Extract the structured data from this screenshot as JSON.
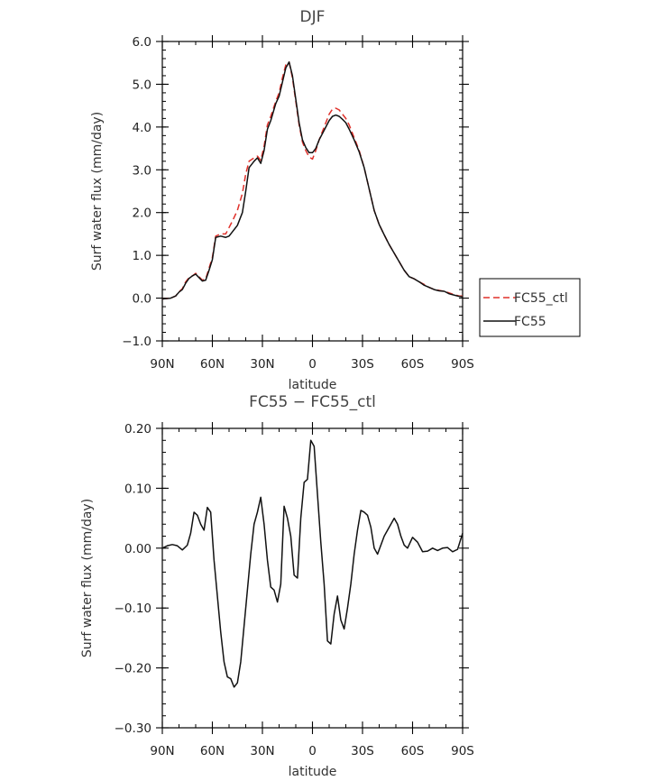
{
  "chart_data": [
    {
      "type": "line",
      "title": "DJF",
      "xlabel": "latitude",
      "ylabel": "Surf water flux (mm/day)",
      "xlim": [
        -90,
        90
      ],
      "ylim": [
        -1.0,
        6.0
      ],
      "x_ticks": [
        -90,
        -60,
        -30,
        0,
        30,
        60,
        90
      ],
      "x_tick_labels": [
        "90N",
        "60N",
        "30N",
        "0",
        "30S",
        "60S",
        "90S"
      ],
      "y_ticks": [
        -1.0,
        0.0,
        1.0,
        2.0,
        3.0,
        4.0,
        5.0,
        6.0
      ],
      "y_tick_labels": [
        "−1.0",
        "0.0",
        "1.0",
        "2.0",
        "3.0",
        "4.0",
        "5.0",
        "6.0"
      ],
      "legend_position": "right",
      "series": [
        {
          "name": "FC55_ctl",
          "color": "#e0302a",
          "dash": "dashed",
          "x": [
            -90,
            -85,
            -82,
            -80,
            -78,
            -76,
            -74,
            -72,
            -70,
            -68,
            -66,
            -64,
            -62,
            -60,
            -58,
            -55,
            -52,
            -50,
            -48,
            -45,
            -42,
            -40,
            -38,
            -35,
            -33,
            -31,
            -29,
            -27,
            -25,
            -22,
            -20,
            -18,
            -16,
            -14,
            -12,
            -10,
            -8,
            -6,
            -4,
            -2,
            0,
            2,
            4,
            6,
            8,
            10,
            12,
            14,
            16,
            18,
            20,
            22,
            25,
            28,
            31,
            34,
            37,
            40,
            43,
            46,
            49,
            52,
            55,
            58,
            61,
            64,
            67,
            70,
            73,
            76,
            79,
            82,
            85,
            88,
            90
          ],
          "y": [
            -0.02,
            0.0,
            0.05,
            0.15,
            0.22,
            0.38,
            0.48,
            0.52,
            0.58,
            0.5,
            0.42,
            0.45,
            0.7,
            0.95,
            1.45,
            1.5,
            1.5,
            1.65,
            1.8,
            2.05,
            2.45,
            2.9,
            3.2,
            3.28,
            3.32,
            3.22,
            3.55,
            4.05,
            4.25,
            4.6,
            4.8,
            5.15,
            5.45,
            5.52,
            5.15,
            4.6,
            4.05,
            3.65,
            3.45,
            3.3,
            3.25,
            3.45,
            3.7,
            3.9,
            4.1,
            4.3,
            4.42,
            4.44,
            4.4,
            4.3,
            4.2,
            4.05,
            3.75,
            3.45,
            3.05,
            2.55,
            2.05,
            1.72,
            1.48,
            1.25,
            1.05,
            0.85,
            0.65,
            0.5,
            0.45,
            0.38,
            0.32,
            0.25,
            0.2,
            0.18,
            0.16,
            0.12,
            0.08,
            0.05,
            0.05
          ]
        },
        {
          "name": "FC55",
          "color": "#111111",
          "dash": "solid",
          "x": [
            -90,
            -85,
            -82,
            -80,
            -78,
            -76,
            -74,
            -72,
            -70,
            -68,
            -66,
            -64,
            -62,
            -60,
            -58,
            -55,
            -52,
            -50,
            -48,
            -45,
            -42,
            -40,
            -38,
            -35,
            -33,
            -31,
            -29,
            -27,
            -25,
            -22,
            -20,
            -18,
            -16,
            -14,
            -12,
            -10,
            -8,
            -6,
            -4,
            -2,
            0,
            2,
            4,
            6,
            8,
            10,
            12,
            14,
            16,
            18,
            20,
            22,
            25,
            28,
            31,
            34,
            37,
            40,
            43,
            46,
            49,
            52,
            55,
            58,
            61,
            64,
            67,
            70,
            73,
            76,
            79,
            82,
            85,
            88,
            90
          ],
          "y": [
            -0.02,
            0.0,
            0.05,
            0.14,
            0.2,
            0.35,
            0.46,
            0.52,
            0.56,
            0.48,
            0.4,
            0.42,
            0.65,
            0.9,
            1.42,
            1.45,
            1.42,
            1.45,
            1.55,
            1.7,
            2.0,
            2.5,
            3.05,
            3.2,
            3.28,
            3.15,
            3.45,
            3.95,
            4.15,
            4.55,
            4.72,
            5.05,
            5.38,
            5.52,
            5.2,
            4.65,
            4.1,
            3.7,
            3.52,
            3.4,
            3.4,
            3.5,
            3.7,
            3.85,
            4.0,
            4.15,
            4.25,
            4.28,
            4.25,
            4.18,
            4.1,
            3.95,
            3.7,
            3.42,
            3.05,
            2.55,
            2.05,
            1.72,
            1.48,
            1.25,
            1.05,
            0.85,
            0.65,
            0.5,
            0.45,
            0.38,
            0.3,
            0.25,
            0.2,
            0.17,
            0.16,
            0.1,
            0.07,
            0.04,
            0.03
          ]
        }
      ]
    },
    {
      "type": "line",
      "title": "FC55 − FC55_ctl",
      "xlabel": "latitude",
      "ylabel": "Surf water flux (mm/day)",
      "xlim": [
        -90,
        90
      ],
      "ylim": [
        -0.3,
        0.2
      ],
      "x_ticks": [
        -90,
        -60,
        -30,
        0,
        30,
        60,
        90
      ],
      "x_tick_labels": [
        "90N",
        "60N",
        "30N",
        "0",
        "30S",
        "60S",
        "90S"
      ],
      "y_ticks": [
        -0.3,
        -0.2,
        -0.1,
        0.0,
        0.1,
        0.2
      ],
      "y_tick_labels": [
        "−0.30",
        "−0.20",
        "−0.10",
        "0.00",
        "0.10",
        "0.20"
      ],
      "series": [
        {
          "color": "#111111",
          "dash": "solid",
          "x": [
            -90,
            -87,
            -84,
            -81,
            -78,
            -75,
            -73,
            -71,
            -69,
            -67,
            -65,
            -63,
            -61,
            -59,
            -57,
            -55,
            -53,
            -51,
            -49,
            -47,
            -45,
            -43,
            -41,
            -39,
            -37,
            -35,
            -33,
            -31,
            -29,
            -27,
            -25,
            -23,
            -21,
            -19,
            -17,
            -15,
            -13,
            -11,
            -9,
            -7,
            -5,
            -3,
            -1,
            1,
            3,
            5,
            7,
            9,
            11,
            13,
            15,
            17,
            19,
            21,
            23,
            25,
            27,
            29,
            31,
            33,
            35,
            37,
            39,
            41,
            43,
            45,
            47,
            49,
            51,
            53,
            55,
            57,
            60,
            63,
            66,
            69,
            72,
            75,
            78,
            81,
            84,
            87,
            90
          ],
          "y": [
            0.0,
            0.004,
            0.006,
            0.004,
            -0.003,
            0.005,
            0.025,
            0.06,
            0.055,
            0.04,
            0.03,
            0.068,
            0.06,
            -0.02,
            -0.08,
            -0.14,
            -0.19,
            -0.215,
            -0.218,
            -0.232,
            -0.225,
            -0.19,
            -0.13,
            -0.07,
            -0.01,
            0.04,
            0.06,
            0.085,
            0.04,
            -0.02,
            -0.065,
            -0.07,
            -0.09,
            -0.06,
            0.07,
            0.05,
            0.02,
            -0.045,
            -0.05,
            0.05,
            0.11,
            0.115,
            0.18,
            0.17,
            0.09,
            0.01,
            -0.06,
            -0.155,
            -0.16,
            -0.11,
            -0.08,
            -0.12,
            -0.135,
            -0.1,
            -0.06,
            -0.01,
            0.03,
            0.063,
            0.06,
            0.055,
            0.035,
            0.0,
            -0.01,
            0.005,
            0.02,
            0.03,
            0.04,
            0.05,
            0.04,
            0.02,
            0.005,
            0.0,
            0.018,
            0.01,
            -0.006,
            -0.005,
            0.0,
            -0.004,
            0.0,
            0.001,
            -0.006,
            -0.002,
            0.025
          ]
        }
      ]
    }
  ]
}
